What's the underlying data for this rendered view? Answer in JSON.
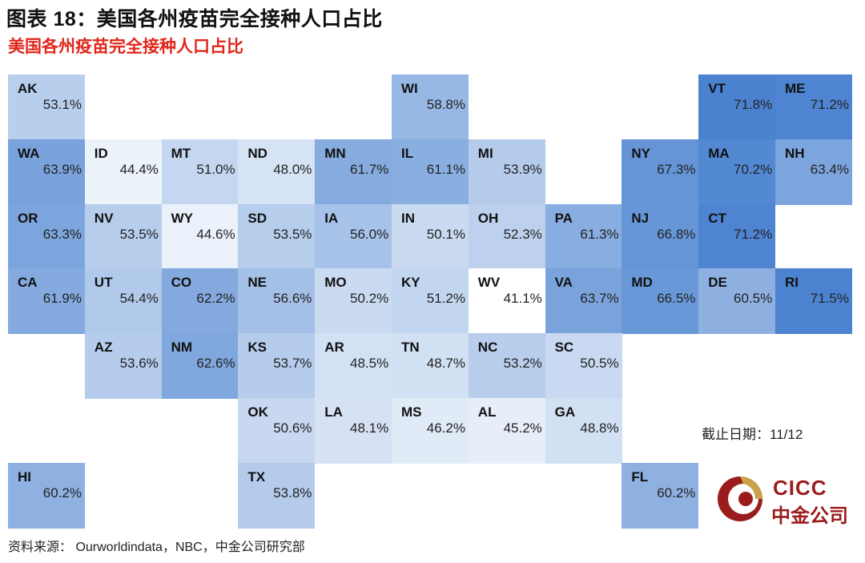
{
  "title": "图表 18：美国各州疫苗完全接种人口占比",
  "subtitle": "美国各州疫苗完全接种人口占比",
  "as_of": "截止日期：11/12",
  "source": "资料来源：  Ourworldindata，NBC，中金公司研究部",
  "logo": {
    "brand": "CICC",
    "brand_cn": "中金公司"
  },
  "colors": {
    "low": "#ffffff",
    "high": "#4a82d0",
    "subtitle": "#e0261b",
    "brand": "#9b1c1c"
  },
  "chart_data": {
    "type": "heatmap",
    "title": "美国各州疫苗完全接种人口占比",
    "value_unit": "%",
    "color_scale": {
      "min": 41.1,
      "max": 71.8
    },
    "tiles": [
      {
        "code": "AK",
        "value": 53.1,
        "label": "53.1%",
        "row": 0,
        "col": 0
      },
      {
        "code": "WI",
        "value": 58.8,
        "label": "58.8%",
        "row": 0,
        "col": 5
      },
      {
        "code": "VT",
        "value": 71.8,
        "label": "71.8%",
        "row": 0,
        "col": 9
      },
      {
        "code": "ME",
        "value": 71.2,
        "label": "71.2%",
        "row": 0,
        "col": 10
      },
      {
        "code": "WA",
        "value": 63.9,
        "label": "63.9%",
        "row": 1,
        "col": 0
      },
      {
        "code": "ID",
        "value": 44.4,
        "label": "44.4%",
        "row": 1,
        "col": 1
      },
      {
        "code": "MT",
        "value": 51.0,
        "label": "51.0%",
        "row": 1,
        "col": 2
      },
      {
        "code": "ND",
        "value": 48.0,
        "label": "48.0%",
        "row": 1,
        "col": 3
      },
      {
        "code": "MN",
        "value": 61.7,
        "label": "61.7%",
        "row": 1,
        "col": 4
      },
      {
        "code": "IL",
        "value": 61.1,
        "label": "61.1%",
        "row": 1,
        "col": 5
      },
      {
        "code": "MI",
        "value": 53.9,
        "label": "53.9%",
        "row": 1,
        "col": 6
      },
      {
        "code": "NY",
        "value": 67.3,
        "label": "67.3%",
        "row": 1,
        "col": 8
      },
      {
        "code": "MA",
        "value": 70.2,
        "label": "70.2%",
        "row": 1,
        "col": 9
      },
      {
        "code": "NH",
        "value": 63.4,
        "label": "63.4%",
        "row": 1,
        "col": 10
      },
      {
        "code": "OR",
        "value": 63.3,
        "label": "63.3%",
        "row": 2,
        "col": 0
      },
      {
        "code": "NV",
        "value": 53.5,
        "label": "53.5%",
        "row": 2,
        "col": 1
      },
      {
        "code": "WY",
        "value": 44.6,
        "label": "44.6%",
        "row": 2,
        "col": 2
      },
      {
        "code": "SD",
        "value": 53.5,
        "label": "53.5%",
        "row": 2,
        "col": 3
      },
      {
        "code": "IA",
        "value": 56.0,
        "label": "56.0%",
        "row": 2,
        "col": 4
      },
      {
        "code": "IN",
        "value": 50.1,
        "label": "50.1%",
        "row": 2,
        "col": 5
      },
      {
        "code": "OH",
        "value": 52.3,
        "label": "52.3%",
        "row": 2,
        "col": 6
      },
      {
        "code": "PA",
        "value": 61.3,
        "label": "61.3%",
        "row": 2,
        "col": 7
      },
      {
        "code": "NJ",
        "value": 66.8,
        "label": "66.8%",
        "row": 2,
        "col": 8
      },
      {
        "code": "CT",
        "value": 71.2,
        "label": "71.2%",
        "row": 2,
        "col": 9
      },
      {
        "code": "CA",
        "value": 61.9,
        "label": "61.9%",
        "row": 3,
        "col": 0
      },
      {
        "code": "UT",
        "value": 54.4,
        "label": "54.4%",
        "row": 3,
        "col": 1
      },
      {
        "code": "CO",
        "value": 62.2,
        "label": "62.2%",
        "row": 3,
        "col": 2
      },
      {
        "code": "NE",
        "value": 56.6,
        "label": "56.6%",
        "row": 3,
        "col": 3
      },
      {
        "code": "MO",
        "value": 50.2,
        "label": "50.2%",
        "row": 3,
        "col": 4
      },
      {
        "code": "KY",
        "value": 51.2,
        "label": "51.2%",
        "row": 3,
        "col": 5
      },
      {
        "code": "WV",
        "value": 41.1,
        "label": "41.1%",
        "row": 3,
        "col": 6
      },
      {
        "code": "VA",
        "value": 63.7,
        "label": "63.7%",
        "row": 3,
        "col": 7
      },
      {
        "code": "MD",
        "value": 66.5,
        "label": "66.5%",
        "row": 3,
        "col": 8
      },
      {
        "code": "DE",
        "value": 60.5,
        "label": "60.5%",
        "row": 3,
        "col": 9
      },
      {
        "code": "RI",
        "value": 71.5,
        "label": "71.5%",
        "row": 3,
        "col": 10
      },
      {
        "code": "AZ",
        "value": 53.6,
        "label": "53.6%",
        "row": 4,
        "col": 1
      },
      {
        "code": "NM",
        "value": 62.6,
        "label": "62.6%",
        "row": 4,
        "col": 2
      },
      {
        "code": "KS",
        "value": 53.7,
        "label": "53.7%",
        "row": 4,
        "col": 3
      },
      {
        "code": "AR",
        "value": 48.5,
        "label": "48.5%",
        "row": 4,
        "col": 4
      },
      {
        "code": "TN",
        "value": 48.7,
        "label": "48.7%",
        "row": 4,
        "col": 5
      },
      {
        "code": "NC",
        "value": 53.2,
        "label": "53.2%",
        "row": 4,
        "col": 6
      },
      {
        "code": "SC",
        "value": 50.5,
        "label": "50.5%",
        "row": 4,
        "col": 7
      },
      {
        "code": "OK",
        "value": 50.6,
        "label": "50.6%",
        "row": 5,
        "col": 3
      },
      {
        "code": "LA",
        "value": 48.1,
        "label": "48.1%",
        "row": 5,
        "col": 4
      },
      {
        "code": "MS",
        "value": 46.2,
        "label": "46.2%",
        "row": 5,
        "col": 5
      },
      {
        "code": "AL",
        "value": 45.2,
        "label": "45.2%",
        "row": 5,
        "col": 6
      },
      {
        "code": "GA",
        "value": 48.8,
        "label": "48.8%",
        "row": 5,
        "col": 7
      },
      {
        "code": "HI",
        "value": 60.2,
        "label": "60.2%",
        "row": 6,
        "col": 0
      },
      {
        "code": "TX",
        "value": 53.8,
        "label": "53.8%",
        "row": 6,
        "col": 3
      },
      {
        "code": "FL",
        "value": 60.2,
        "label": "60.2%",
        "row": 6,
        "col": 8
      }
    ]
  }
}
